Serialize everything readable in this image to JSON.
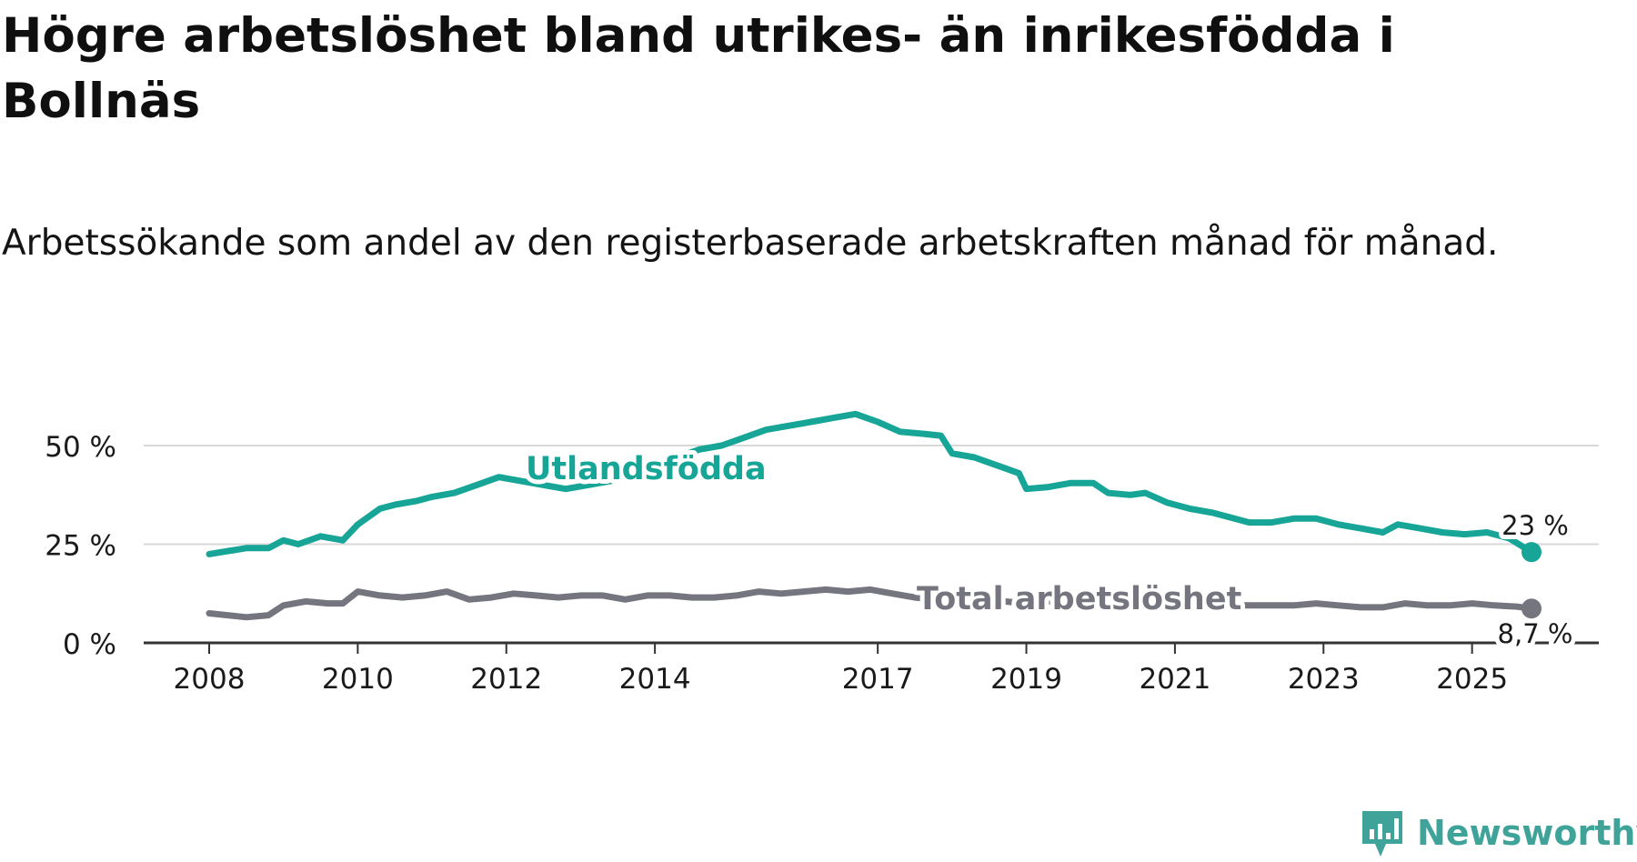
{
  "header": {
    "title": "Högre arbetslöshet bland utrikes- än inrikesfödda i Bollnäs",
    "subtitle": "Arbetssökande som andel av den registerbaserade arbetskraften månad för månad."
  },
  "brand": {
    "name": "Newsworthy",
    "icon": "newsworthy-logo-icon",
    "color": "#3fa39a"
  },
  "colors": {
    "foreign": "#16a596",
    "total": "#75757f",
    "grid": "#d9d9d9",
    "axis": "#333333",
    "text": "#1a1a1a"
  },
  "chart_data": {
    "type": "line",
    "title": "Högre arbetslöshet bland utrikes- än inrikesfödda i Bollnäs",
    "subtitle": "Arbetssökande som andel av den registerbaserade arbetskraften månad för månad.",
    "xlabel": "",
    "ylabel": "",
    "xlim": [
      2008.0,
      2026.9
    ],
    "ylim": [
      0,
      58
    ],
    "y_ticks": [
      0,
      25,
      50
    ],
    "y_tick_labels": [
      "0 %",
      "25 %",
      "50 %"
    ],
    "x_ticks": [
      2008,
      2010,
      2012,
      2014,
      2017,
      2019,
      2021,
      2023,
      2025
    ],
    "x_tick_labels": [
      "2008",
      "2010",
      "2012",
      "2014",
      "2017",
      "2019",
      "2021",
      "2023",
      "2025"
    ],
    "grid": true,
    "series": [
      {
        "name": "Utlandsfödda",
        "end_label": "23 %",
        "x": [
          2008.0,
          2008.5,
          2008.8,
          2009.0,
          2009.2,
          2009.5,
          2009.8,
          2010.0,
          2010.3,
          2010.5,
          2010.8,
          2011.0,
          2011.3,
          2011.6,
          2011.9,
          2012.2,
          2012.5,
          2012.8,
          2013.1,
          2013.4,
          2013.7,
          2014.0,
          2014.3,
          2014.6,
          2014.9,
          2015.2,
          2015.5,
          2015.8,
          2016.1,
          2016.4,
          2016.7,
          2017.0,
          2017.3,
          2017.6,
          2017.85,
          2018.0,
          2018.3,
          2018.6,
          2018.9,
          2019.0,
          2019.3,
          2019.6,
          2019.9,
          2020.1,
          2020.4,
          2020.6,
          2020.9,
          2021.2,
          2021.5,
          2021.8,
          2022.0,
          2022.3,
          2022.6,
          2022.9,
          2023.2,
          2023.5,
          2023.8,
          2024.0,
          2024.3,
          2024.6,
          2024.9,
          2025.2,
          2025.5,
          2025.8
        ],
        "y": [
          22.5,
          24,
          24,
          26,
          25,
          27,
          26,
          30,
          34,
          35,
          36,
          37,
          38,
          40,
          42,
          41,
          40,
          39,
          40,
          41,
          43,
          45,
          47,
          49,
          50,
          52,
          54,
          55,
          56,
          57,
          58,
          56,
          53.5,
          53,
          52.5,
          48,
          47,
          45,
          43,
          39,
          39.5,
          40.5,
          40.5,
          38,
          37.5,
          38,
          35.5,
          34,
          33,
          31.5,
          30.5,
          30.5,
          31.5,
          31.5,
          30,
          29,
          28,
          30,
          29,
          28,
          27.5,
          28,
          26.5,
          23
        ]
      },
      {
        "name": "Total arbetslöshet",
        "end_label": "8,7 %",
        "x": [
          2008.0,
          2008.5,
          2008.8,
          2009.0,
          2009.3,
          2009.6,
          2009.8,
          2010.0,
          2010.3,
          2010.6,
          2010.9,
          2011.2,
          2011.5,
          2011.8,
          2012.1,
          2012.4,
          2012.7,
          2013.0,
          2013.3,
          2013.6,
          2013.9,
          2014.2,
          2014.5,
          2014.8,
          2015.1,
          2015.4,
          2015.7,
          2016.0,
          2016.3,
          2016.6,
          2016.9,
          2017.2,
          2017.5,
          2017.8,
          2018.1,
          2018.4,
          2018.7,
          2019.0,
          2019.3,
          2019.6,
          2019.9,
          2020.2,
          2020.5,
          2020.8,
          2021.1,
          2021.4,
          2021.7,
          2022.0,
          2022.3,
          2022.6,
          2022.9,
          2023.2,
          2023.5,
          2023.8,
          2024.1,
          2024.4,
          2024.7,
          2025.0,
          2025.3,
          2025.6,
          2025.8
        ],
        "y": [
          7.5,
          6.5,
          7,
          9.5,
          10.5,
          10,
          10,
          13,
          12,
          11.5,
          12,
          13,
          11,
          11.5,
          12.5,
          12,
          11.5,
          12,
          12,
          11,
          12,
          12,
          11.5,
          11.5,
          12,
          13,
          12.5,
          13,
          13.5,
          13,
          13.5,
          12.5,
          11.5,
          11,
          10.5,
          10.5,
          10.5,
          10,
          10.5,
          10,
          10,
          10,
          10,
          10,
          9.8,
          9.8,
          9.5,
          9.5,
          9.5,
          9.5,
          10,
          9.5,
          9,
          9,
          10,
          9.5,
          9.5,
          10,
          9.5,
          9.2,
          8.7
        ]
      }
    ]
  }
}
